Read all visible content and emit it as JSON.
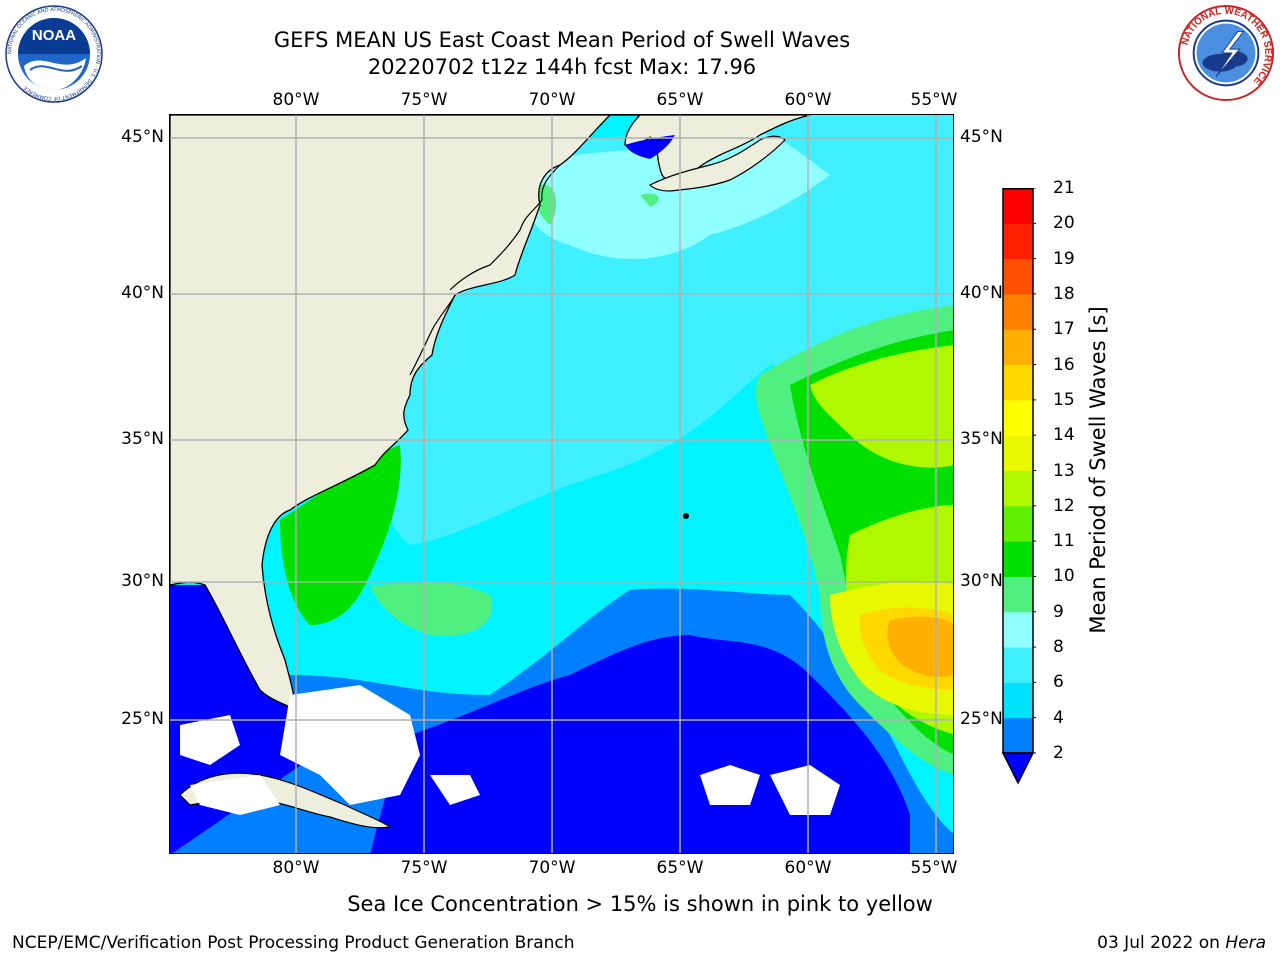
{
  "title": {
    "line1": "GEFS MEAN US East Coast Mean Period of Swell Waves",
    "line2": "20220702 t12z 144h fcst   Max: 17.96"
  },
  "map": {
    "lon_ticks": [
      "80°W",
      "75°W",
      "70°W",
      "65°W",
      "60°W",
      "55°W"
    ],
    "lat_ticks": [
      "45°N",
      "40°N",
      "35°N",
      "30°N",
      "25°N"
    ],
    "colors": {
      "land": "#eeeedd",
      "grid": "#b0b0b0",
      "no_data": "#ffffff"
    }
  },
  "colorbar": {
    "label": "Mean Period of Swell Waves [s]",
    "ticks": [
      "2",
      "4",
      "6",
      "8",
      "9",
      "10",
      "11",
      "12",
      "13",
      "14",
      "15",
      "16",
      "17",
      "18",
      "19",
      "20",
      "21"
    ],
    "colors": [
      "#0000ff",
      "#0080ff",
      "#00e0ff",
      "#40f0ff",
      "#90ffff",
      "#50f080",
      "#00e000",
      "#60f000",
      "#b0f800",
      "#e8f800",
      "#ffff00",
      "#ffd800",
      "#ffb000",
      "#ff8000",
      "#ff5000",
      "#ff2000",
      "#ff0000"
    ],
    "extend_color": "#0000ff"
  },
  "footer": {
    "note": "Sea Ice Concentration > 15% is shown in pink to yellow",
    "credit": "NCEP/EMC/Verification Post Processing Product Generation Branch",
    "date": "03 Jul 2022 on",
    "machine": "Hera"
  },
  "logos": {
    "noaa": "NOAA",
    "noaa_ring": "NATIONAL OCEANIC AND ATMOSPHERIC ADMINISTRATION · U.S. DEPARTMENT OF COMMERCE",
    "nws_ring": "NATIONAL WEATHER SERVICE"
  }
}
